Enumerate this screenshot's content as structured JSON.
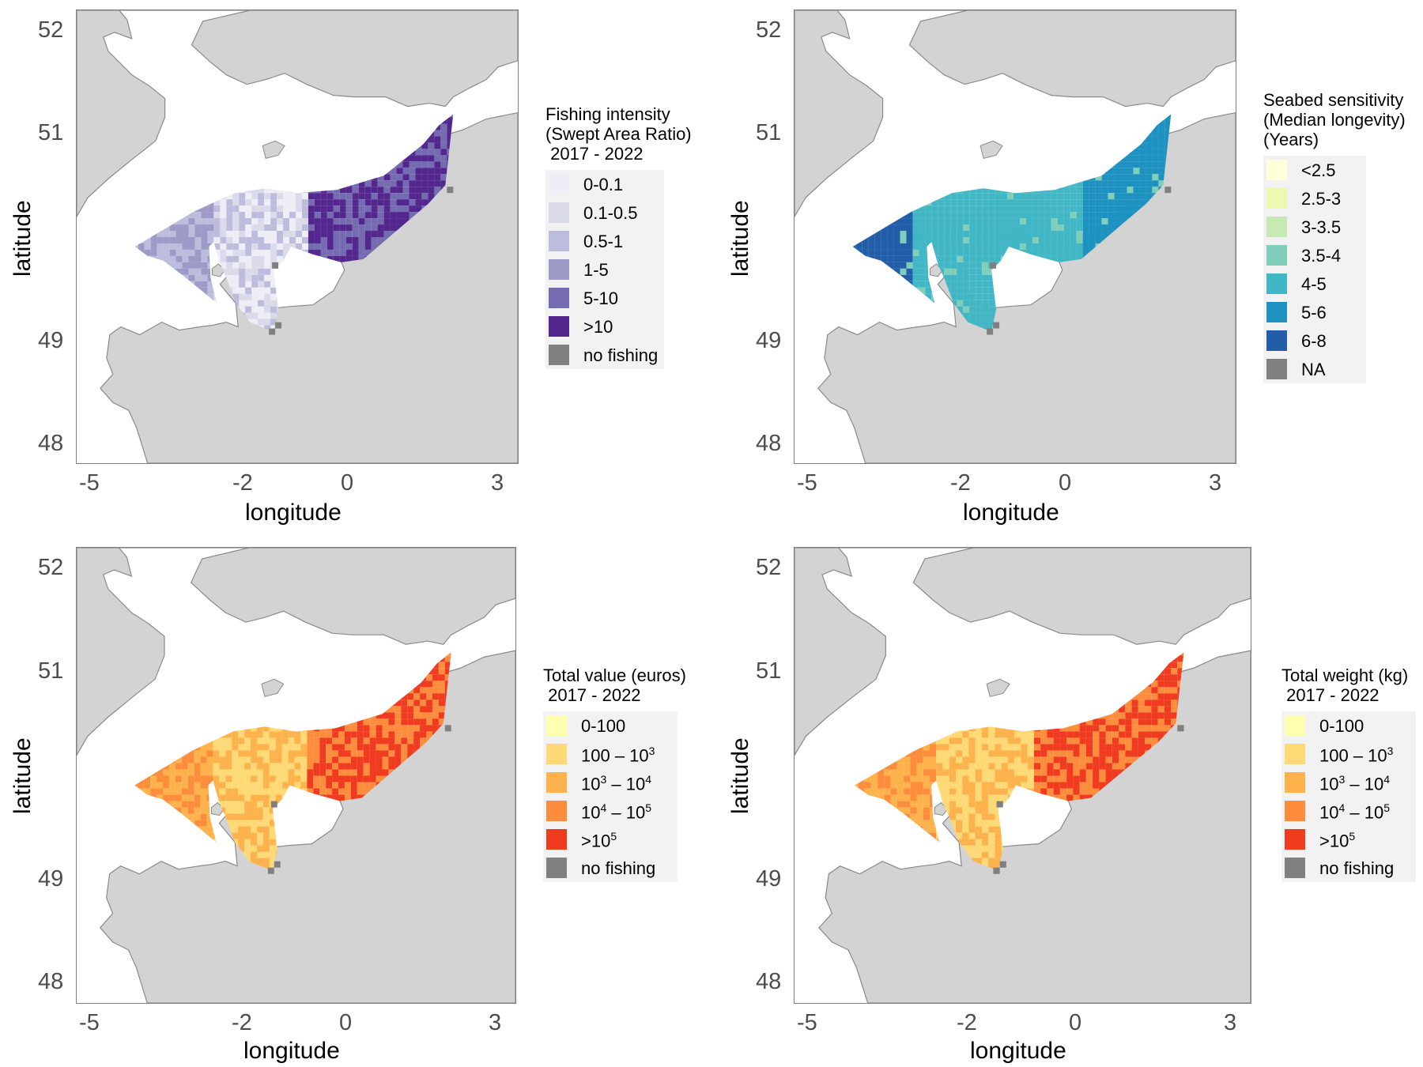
{
  "common": {
    "xlabel": "longitude",
    "ylabel": "latitude",
    "x_ticks": [
      "-5",
      "-2",
      "0",
      "3"
    ],
    "y_ticks": [
      "52",
      "51",
      "49",
      "48"
    ],
    "land_color": "#d3d3d3",
    "sea_color": "#ffffff"
  },
  "panels": [
    {
      "legend_title": "Fishing intensity\n(Swept Area Ratio)\n 2017 - 2022",
      "legend": [
        {
          "label": "0-0.1",
          "color": "#efedf5"
        },
        {
          "label": "0.1-0.5",
          "color": "#dadaeb"
        },
        {
          "label": "0.5-1",
          "color": "#bcbddc"
        },
        {
          "label": "1-5",
          "color": "#9e9ac8"
        },
        {
          "label": "5-10",
          "color": "#756bb1"
        },
        {
          "label": ">10",
          "color": "#54278f"
        },
        {
          "label": "no fishing",
          "color": "#808080"
        }
      ]
    },
    {
      "legend_title": "Seabed sensitivity\n(Median longevity)\n(Years)",
      "legend": [
        {
          "label": "<2.5",
          "color": "#ffffd9"
        },
        {
          "label": "2.5-3",
          "color": "#edf8b1"
        },
        {
          "label": "3-3.5",
          "color": "#c7e9b4"
        },
        {
          "label": "3.5-4",
          "color": "#7fcdbb"
        },
        {
          "label": "4-5",
          "color": "#41b6c4"
        },
        {
          "label": "5-6",
          "color": "#1d91c0"
        },
        {
          "label": "6-8",
          "color": "#225ea8"
        },
        {
          "label": "NA",
          "color": "#808080"
        }
      ]
    },
    {
      "legend_title": "Total value (euros)\n 2017 - 2022",
      "legend": [
        {
          "label": "0-100",
          "color": "#ffffb2"
        },
        {
          "label": "100 – 10",
          "sup": "3",
          "color": "#fed976"
        },
        {
          "label": "10",
          "sup": "3",
          "label2": " – 10",
          "sup2": "4",
          "color": "#feb24c"
        },
        {
          "label": "10",
          "sup": "4",
          "label2": " – 10",
          "sup2": "5",
          "color": "#fd8d3c"
        },
        {
          "label": ">10",
          "sup": "5",
          "color": "#f03b20"
        },
        {
          "label": "no fishing",
          "color": "#808080"
        }
      ]
    },
    {
      "legend_title": "Total weight (kg)\n 2017 - 2022",
      "legend": [
        {
          "label": "0-100",
          "color": "#ffffb2"
        },
        {
          "label": "100 – 10",
          "sup": "3",
          "color": "#fed976"
        },
        {
          "label": "10",
          "sup": "3",
          "label2": " – 10",
          "sup2": "4",
          "color": "#feb24c"
        },
        {
          "label": "10",
          "sup": "4",
          "label2": " – 10",
          "sup2": "5",
          "color": "#fd8d3c"
        },
        {
          "label": ">10",
          "sup": "5",
          "color": "#f03b20"
        },
        {
          "label": "no fishing",
          "color": "#808080"
        }
      ]
    }
  ]
}
